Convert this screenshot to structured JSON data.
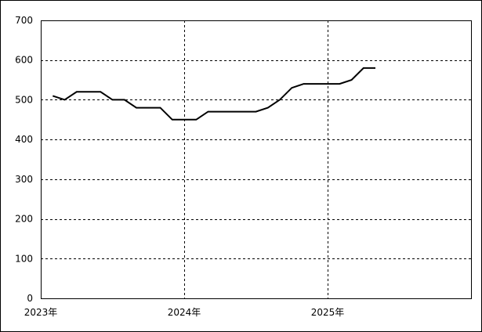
{
  "chart_data": {
    "type": "line",
    "title": "",
    "xlabel": "",
    "ylabel": "",
    "ylim": [
      0,
      700
    ],
    "yticks": [
      0,
      100,
      200,
      300,
      400,
      500,
      600,
      700
    ],
    "xlim": [
      "2023-01",
      "2026-01"
    ],
    "xticks": [
      {
        "at": "2023-01",
        "label": "2023年"
      },
      {
        "at": "2024-01",
        "label": "2024年"
      },
      {
        "at": "2025-01",
        "label": "2025年"
      }
    ],
    "grid": true,
    "series": [
      {
        "color": "#000000",
        "points": [
          {
            "x": "2023-02",
            "y": 510
          },
          {
            "x": "2023-03",
            "y": 500
          },
          {
            "x": "2023-04",
            "y": 520
          },
          {
            "x": "2023-05",
            "y": 520
          },
          {
            "x": "2023-06",
            "y": 520
          },
          {
            "x": "2023-07",
            "y": 500
          },
          {
            "x": "2023-08",
            "y": 500
          },
          {
            "x": "2023-09",
            "y": 480
          },
          {
            "x": "2023-10",
            "y": 480
          },
          {
            "x": "2023-11",
            "y": 480
          },
          {
            "x": "2023-12",
            "y": 450
          },
          {
            "x": "2024-01",
            "y": 450
          },
          {
            "x": "2024-02",
            "y": 450
          },
          {
            "x": "2024-03",
            "y": 470
          },
          {
            "x": "2024-04",
            "y": 470
          },
          {
            "x": "2024-05",
            "y": 470
          },
          {
            "x": "2024-06",
            "y": 470
          },
          {
            "x": "2024-07",
            "y": 470
          },
          {
            "x": "2024-08",
            "y": 480
          },
          {
            "x": "2024-09",
            "y": 500
          },
          {
            "x": "2024-10",
            "y": 530
          },
          {
            "x": "2024-11",
            "y": 540
          },
          {
            "x": "2024-12",
            "y": 540
          },
          {
            "x": "2025-01",
            "y": 540
          },
          {
            "x": "2025-02",
            "y": 540
          },
          {
            "x": "2025-03",
            "y": 550
          },
          {
            "x": "2025-04",
            "y": 580
          },
          {
            "x": "2025-05",
            "y": 580
          }
        ]
      }
    ]
  }
}
